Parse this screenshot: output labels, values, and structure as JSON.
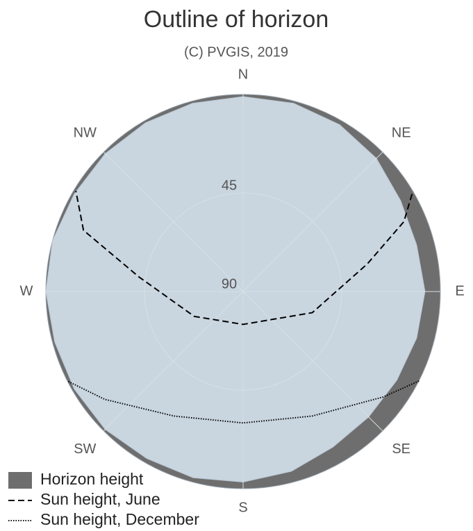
{
  "chart_data": {
    "type": "polar",
    "title": "Outline of horizon",
    "subtitle": "(C) PVGIS, 2019",
    "directions": [
      "N",
      "NE",
      "E",
      "SE",
      "S",
      "SW",
      "W",
      "NW"
    ],
    "rlim": [
      90,
      0
    ],
    "rticks": [
      45,
      90
    ],
    "sky_color": "#c9d5df",
    "grid": true,
    "legend": "lower left",
    "series": [
      {
        "name": "Horizon height",
        "color": "#6e6e6e",
        "style": "area",
        "x": [
          0,
          15,
          30,
          45,
          60,
          75,
          90,
          105,
          120,
          135,
          150,
          165,
          180,
          195,
          210,
          225,
          240,
          255,
          270,
          285,
          300,
          315,
          330,
          345
        ],
        "values": [
          1,
          1,
          2,
          4,
          7,
          8,
          7,
          8,
          9,
          9,
          8,
          5,
          3,
          2,
          2,
          1,
          1,
          1,
          0,
          0,
          1,
          1,
          1,
          1
        ]
      },
      {
        "name": "Sun height, June",
        "color": "#000000",
        "style": "dashed",
        "x": [
          60,
          66.5,
          77.5,
          107,
          180,
          243,
          278,
          291,
          301
        ],
        "values": [
          1,
          10,
          32,
          57,
          75,
          65,
          42,
          12,
          1
        ]
      },
      {
        "name": "Sun height, December",
        "color": "#000000",
        "style": "dotted",
        "x": [
          117,
          127,
          151,
          180,
          209,
          232,
          243
        ],
        "values": [
          0,
          10,
          25,
          30,
          25,
          10,
          0
        ]
      }
    ]
  }
}
